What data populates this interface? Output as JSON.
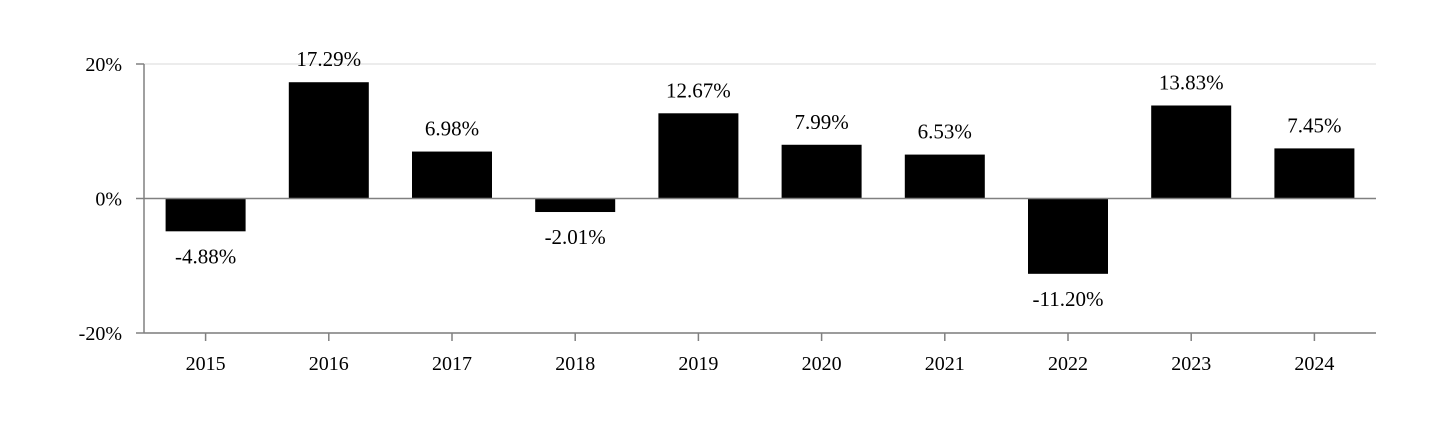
{
  "chart_data": {
    "type": "bar",
    "title": "",
    "xlabel": "",
    "ylabel": "",
    "categories": [
      "2015",
      "2016",
      "2017",
      "2018",
      "2019",
      "2020",
      "2021",
      "2022",
      "2023",
      "2024"
    ],
    "values": [
      -4.88,
      17.29,
      6.98,
      -2.01,
      12.67,
      7.99,
      6.53,
      -11.2,
      13.83,
      7.45
    ],
    "value_labels": [
      "-4.88%",
      "17.29%",
      "6.98%",
      "-2.01%",
      "12.67%",
      "7.99%",
      "6.53%",
      "-11.20%",
      "13.83%",
      "7.45%"
    ],
    "ylim": [
      -20,
      20
    ],
    "yticks": [
      -20,
      0,
      20
    ],
    "ytick_labels": [
      "-20%",
      "0%",
      "20%"
    ],
    "grid": true,
    "legend": "none",
    "colors": {
      "bar": "#000000",
      "axis": "#808080",
      "gridline": "#e6e6e6",
      "zero_line": "#808080",
      "text": "#000000"
    }
  }
}
